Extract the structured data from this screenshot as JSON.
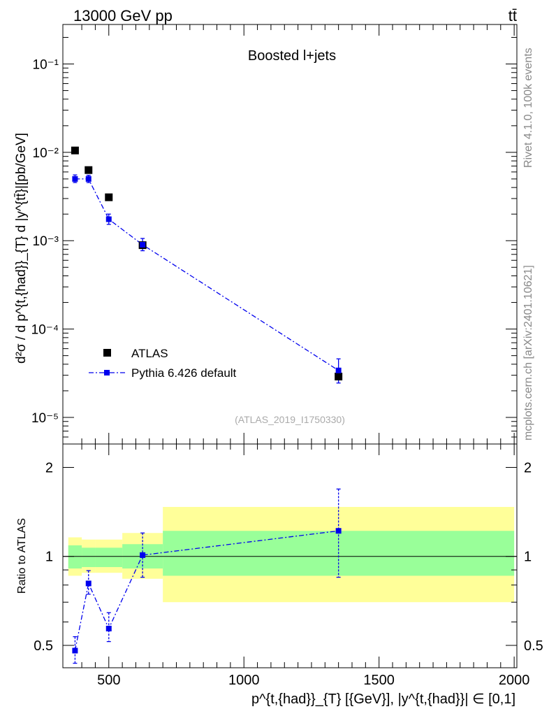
{
  "header": {
    "energy": "13000 GeV pp",
    "process": "tt̄"
  },
  "side_text": {
    "rivet": "Rivet 4.1.0,  100k events",
    "source": "mcplots.cern.ch [arXiv:2401.10621]"
  },
  "colors": {
    "data": "#000000",
    "mc": "#0000ee",
    "band_inner": "#99ff99",
    "band_outer": "#ffff99"
  },
  "chart_data": [
    {
      "type": "scatter",
      "panel": "main",
      "title": "Boosted l+jets",
      "analysis_label": "(ATLAS_2019_I1750330)",
      "ylabel": "d²σ / d p^{t,{had}}_{T} d |y^{tt̄}|[pb/GeV]",
      "yscale": "log",
      "ylim": [
        5e-06,
        0.28
      ],
      "xlim": [
        330,
        2010
      ],
      "y_ticks": [
        {
          "value": 0.1,
          "label": "10⁻¹"
        },
        {
          "value": 0.01,
          "label": "10⁻²"
        },
        {
          "value": 0.001,
          "label": "10⁻³"
        },
        {
          "value": 0.0001,
          "label": "10⁻⁴"
        },
        {
          "value": 1e-05,
          "label": "10⁻⁵"
        }
      ],
      "legend": [
        {
          "name": "ATLAS",
          "style": "marker"
        },
        {
          "name": "Pythia 6.426 default",
          "style": "line-marker"
        }
      ],
      "legend_position": "bottom-left",
      "series": [
        {
          "name": "ATLAS",
          "x": [
            375,
            425,
            500,
            625,
            1350
          ],
          "y": [
            0.0105,
            0.0063,
            0.0031,
            0.00089,
            2.9e-05
          ]
        },
        {
          "name": "Pythia 6.426 default",
          "x": [
            375,
            425,
            500,
            625,
            1350
          ],
          "y": [
            0.005,
            0.005,
            0.00175,
            0.0009,
            3.4e-05
          ],
          "yerr_low": [
            0.00045,
            0.00045,
            0.00022,
            0.00013,
            9.5e-06
          ],
          "yerr_high": [
            0.00055,
            0.0005,
            0.00025,
            0.00016,
            1.2e-05
          ]
        }
      ]
    },
    {
      "type": "scatter",
      "panel": "ratio",
      "ylabel": "Ratio to ATLAS",
      "xlabel": "p^{t,{had}}_{T} [{GeV}], |y^{t,{had}}| ∈ [0,1]",
      "yscale": "log",
      "ylim": [
        0.42,
        2.4
      ],
      "xlim": [
        330,
        2010
      ],
      "y_ticks": [
        {
          "value": 0.5,
          "label": "0.5"
        },
        {
          "value": 1,
          "label": "1"
        },
        {
          "value": 2,
          "label": "2"
        }
      ],
      "x_ticks": [
        {
          "value": 500,
          "label": "500"
        },
        {
          "value": 1000,
          "label": "1000"
        },
        {
          "value": 1500,
          "label": "1500"
        },
        {
          "value": 2000,
          "label": "2000"
        }
      ],
      "bands": [
        {
          "x0": 350,
          "x1": 400,
          "inner": [
            0.91,
            1.09
          ],
          "outer": [
            0.86,
            1.16
          ]
        },
        {
          "x0": 400,
          "x1": 450,
          "inner": [
            0.92,
            1.07
          ],
          "outer": [
            0.88,
            1.14
          ]
        },
        {
          "x0": 450,
          "x1": 550,
          "inner": [
            0.92,
            1.07
          ],
          "outer": [
            0.88,
            1.14
          ]
        },
        {
          "x0": 550,
          "x1": 700,
          "inner": [
            0.91,
            1.1
          ],
          "outer": [
            0.84,
            1.2
          ]
        },
        {
          "x0": 700,
          "x1": 2000,
          "inner": [
            0.86,
            1.22
          ],
          "outer": [
            0.7,
            1.47
          ]
        }
      ],
      "series": [
        {
          "name": "Pythia 6.426 default",
          "x": [
            375,
            425,
            500,
            625,
            1350
          ],
          "y": [
            0.48,
            0.81,
            0.57,
            1.01,
            1.22
          ],
          "yerr_low": [
            0.045,
            0.065,
            0.055,
            0.16,
            0.37
          ],
          "yerr_high": [
            0.055,
            0.085,
            0.075,
            0.19,
            0.47
          ]
        }
      ]
    }
  ]
}
